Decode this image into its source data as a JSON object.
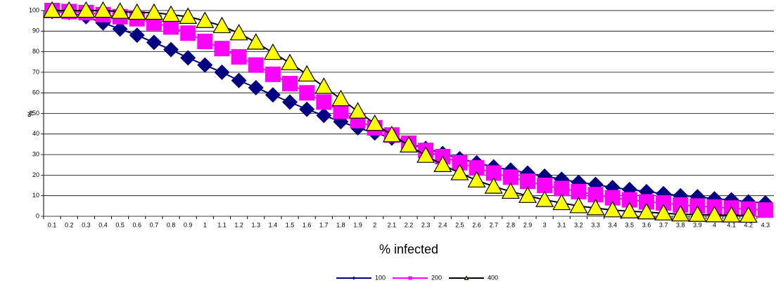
{
  "chart_data": {
    "type": "line",
    "x_label": "% infected",
    "y_label": "%",
    "categories": [
      "0.1",
      "0.2",
      "0.3",
      "0.4",
      "0.5",
      "0.6",
      "0.7",
      "0.8",
      "0.9",
      "1",
      "1.1",
      "1.2",
      "1.3",
      "1.4",
      "1.5",
      "1.6",
      "1.7",
      "1.8",
      "1.9",
      "2",
      "2.1",
      "2.2",
      "2.3",
      "2.4",
      "2.5",
      "2.6",
      "2.7",
      "2.8",
      "2.9",
      "3",
      "3.1",
      "3.2",
      "3.3",
      "3.4",
      "3.5",
      "3.6",
      "3.7",
      "3.8",
      "3.9",
      "4",
      "4.1",
      "4.2",
      "4.3"
    ],
    "series": [
      {
        "name": "100",
        "color": "#000080",
        "marker": "diamond",
        "marker_color": "#000080",
        "values": [
          99.5,
          99,
          97,
          94,
          91,
          88,
          84.5,
          81,
          77,
          73.5,
          70,
          66,
          62.5,
          59,
          55.5,
          52,
          49,
          46,
          43,
          40.5,
          38,
          35.5,
          33,
          30.5,
          28,
          26,
          24,
          22.5,
          21,
          19.5,
          18,
          16.5,
          15.5,
          14,
          13,
          12,
          11,
          10,
          9.5,
          8.5,
          8,
          7,
          6.5
        ]
      },
      {
        "name": "200",
        "color": "#ff00ff",
        "marker": "square",
        "marker_color": "#ff00ff",
        "values": [
          100,
          99.5,
          99,
          98,
          97,
          96,
          94,
          92,
          89,
          85,
          81.5,
          77.5,
          73.5,
          69,
          64.5,
          60,
          55.5,
          51,
          46.5,
          43,
          39.5,
          35.5,
          32,
          29,
          26,
          23.5,
          21,
          19,
          17,
          15,
          13.5,
          12,
          10.5,
          9,
          8,
          7,
          6.5,
          5.5,
          5,
          4.5,
          4,
          3.5,
          3
        ]
      },
      {
        "name": "400",
        "color": "#000000",
        "marker": "triangle",
        "marker_color": "#ffff00",
        "values": [
          100,
          100,
          100,
          100,
          99.5,
          99,
          99,
          98,
          97,
          95,
          92.5,
          89,
          84.5,
          79.5,
          74.5,
          69,
          63,
          57,
          51,
          45,
          39.5,
          34.5,
          29.5,
          25,
          21,
          17.5,
          14.5,
          12,
          10,
          8,
          6.5,
          5,
          4,
          3,
          2.5,
          2,
          1.5,
          1,
          0.8,
          0.6,
          0.5,
          0.4,
          null
        ]
      }
    ],
    "ylim": [
      0,
      100
    ],
    "yticks": [
      0,
      10,
      20,
      30,
      40,
      50,
      60,
      70,
      80,
      90,
      100
    ],
    "grid": true,
    "legend": "bottom"
  }
}
